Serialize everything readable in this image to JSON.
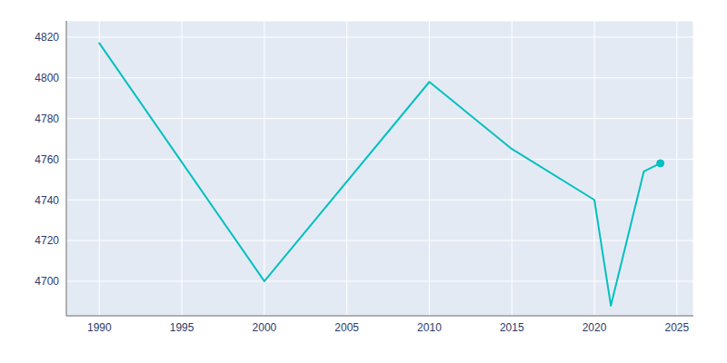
{
  "chart_data": {
    "type": "line",
    "x": [
      1990,
      2000,
      2010,
      2015,
      2020,
      2021,
      2023,
      2024
    ],
    "series": [
      {
        "type": "line",
        "color": "#00C0C0",
        "values": [
          4817,
          4700,
          4798,
          4765,
          4740,
          4688,
          4754,
          4758
        ]
      },
      {
        "type": "scatter",
        "marker": "circle",
        "color": "#00C0C0",
        "x": [
          2024
        ],
        "values": [
          4758
        ]
      }
    ],
    "xlim": [
      1988,
      2026
    ],
    "ylim": [
      4683,
      4828
    ],
    "xticks": [
      1990,
      1995,
      2000,
      2005,
      2010,
      2015,
      2020,
      2025
    ],
    "yticks": [
      4700,
      4720,
      4740,
      4760,
      4780,
      4800,
      4820
    ],
    "grid": true
  }
}
